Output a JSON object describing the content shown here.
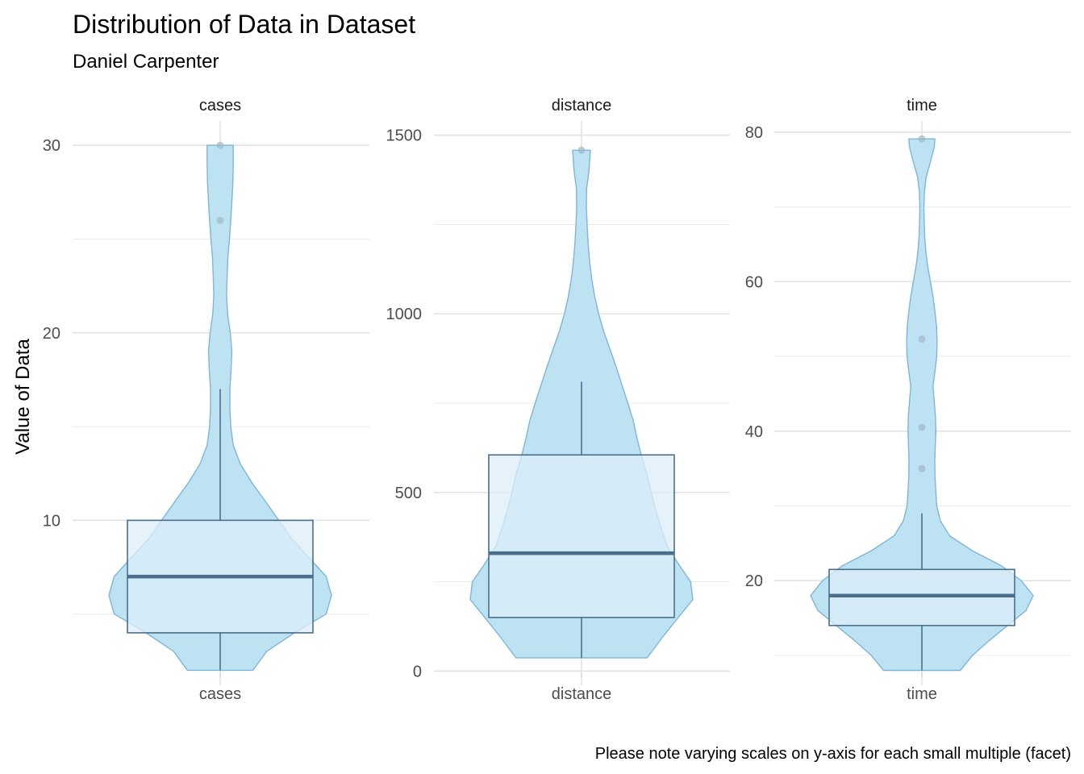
{
  "chart_data": {
    "type": "violin",
    "title": "Distribution of Data in Dataset",
    "subtitle": "Daniel Carpenter",
    "ylabel": "Value of Data",
    "caption": "Please note varying scales on y-axis for each small multiple (facet)",
    "colors": {
      "violin_fill": "#bde3f3",
      "violin_stroke": "#7fb5d8",
      "box_fill": "#ddeef8",
      "box_stroke": "#4a6f8c",
      "median": "#4a6f8c",
      "outlier": "#9fb8c8",
      "grid": "#ebebeb"
    },
    "facets": [
      {
        "name": "cases",
        "xtick": "cases",
        "ylim": [
          1.2,
          31.3
        ],
        "yticks": [
          10,
          20,
          30
        ],
        "ytick_labels": [
          "10",
          "20",
          "30"
        ],
        "minor_ticks": [
          5,
          15,
          25
        ],
        "box": {
          "q1": 4,
          "median": 7,
          "q3": 10,
          "whisker_low": 2,
          "whisker_high": 17
        },
        "outliers": [
          26,
          30
        ],
        "violin": [
          [
            2,
            3.4
          ],
          [
            3,
            2.4
          ],
          [
            4,
            1.5
          ],
          [
            5,
            1.05
          ],
          [
            6,
            1.0
          ],
          [
            7,
            1.05
          ],
          [
            8,
            1.25
          ],
          [
            9,
            1.55
          ],
          [
            10,
            1.9
          ],
          [
            11,
            2.45
          ],
          [
            12,
            3.5
          ],
          [
            13,
            5.5
          ],
          [
            14,
            8.5
          ],
          [
            15,
            10.5
          ],
          [
            16,
            11.5
          ],
          [
            17,
            11.5
          ],
          [
            18,
            10.2
          ],
          [
            19,
            9.5
          ],
          [
            20,
            11.0
          ],
          [
            21,
            15.0
          ],
          [
            22,
            17.5
          ],
          [
            23,
            16.0
          ],
          [
            24,
            14.5
          ],
          [
            25,
            12.0
          ],
          [
            26,
            10.5
          ],
          [
            27,
            9.5
          ],
          [
            28,
            8.8
          ],
          [
            29,
            8.5
          ],
          [
            30,
            8.5
          ]
        ]
      },
      {
        "name": "distance",
        "xtick": "distance",
        "ylim": [
          -40,
          1540
        ],
        "yticks": [
          0,
          500,
          1000,
          1500
        ],
        "ytick_labels": [
          "0",
          "500",
          "1000",
          "1500"
        ],
        "minor_ticks": [
          250,
          750,
          1250
        ],
        "box": {
          "q1": 150,
          "median": 330,
          "q3": 605,
          "whisker_low": 37,
          "whisker_high": 810
        },
        "outliers": [
          1458
        ],
        "violin": [
          [
            37,
            1.7
          ],
          [
            100,
            1.35
          ],
          [
            150,
            1.15
          ],
          [
            200,
            1.0
          ],
          [
            250,
            1.02
          ],
          [
            300,
            1.15
          ],
          [
            350,
            1.3
          ],
          [
            400,
            1.4
          ],
          [
            450,
            1.5
          ],
          [
            500,
            1.6
          ],
          [
            550,
            1.7
          ],
          [
            600,
            1.85
          ],
          [
            650,
            2.0
          ],
          [
            700,
            2.15
          ],
          [
            750,
            2.4
          ],
          [
            800,
            2.75
          ],
          [
            850,
            3.2
          ],
          [
            900,
            3.9
          ],
          [
            950,
            5.0
          ],
          [
            1000,
            6.5
          ],
          [
            1050,
            8.5
          ],
          [
            1100,
            11.0
          ],
          [
            1150,
            14.0
          ],
          [
            1200,
            17.0
          ],
          [
            1250,
            20.0
          ],
          [
            1300,
            23.0
          ],
          [
            1350,
            22.0
          ],
          [
            1400,
            15.0
          ],
          [
            1458,
            12.5
          ]
        ]
      },
      {
        "name": "time",
        "xtick": "time",
        "ylim": [
          6.0,
          81.5
        ],
        "yticks": [
          20,
          40,
          60,
          80
        ],
        "ytick_labels": [
          "20",
          "40",
          "60",
          "80"
        ],
        "minor_ticks": [
          10,
          30,
          50,
          70
        ],
        "box": {
          "q1": 14,
          "median": 18,
          "q3": 21.5,
          "whisker_low": 8,
          "whisker_high": 29
        },
        "outliers": [
          35,
          40.5,
          52.3,
          79.1
        ],
        "violin": [
          [
            8,
            2.9
          ],
          [
            10,
            2.2
          ],
          [
            12,
            1.65
          ],
          [
            14,
            1.3
          ],
          [
            16,
            1.07
          ],
          [
            18,
            1.0
          ],
          [
            20,
            1.12
          ],
          [
            22,
            1.4
          ],
          [
            24,
            2.2
          ],
          [
            26,
            4.0
          ],
          [
            28,
            6.0
          ],
          [
            30,
            7.5
          ],
          [
            32,
            8.0
          ],
          [
            34,
            8.5
          ],
          [
            36,
            8.6
          ],
          [
            38,
            8.3
          ],
          [
            40,
            8.0
          ],
          [
            42,
            8.2
          ],
          [
            44,
            9.0
          ],
          [
            46,
            10.0
          ],
          [
            48,
            8.5
          ],
          [
            50,
            7.5
          ],
          [
            52,
            7.3
          ],
          [
            54,
            7.6
          ],
          [
            56,
            8.5
          ],
          [
            58,
            10.0
          ],
          [
            60,
            13.0
          ],
          [
            62,
            19.0
          ],
          [
            64,
            28.0
          ],
          [
            66,
            40.0
          ],
          [
            68,
            50.0
          ],
          [
            70,
            55.0
          ],
          [
            72,
            45.0
          ],
          [
            74,
            26.0
          ],
          [
            76,
            13.0
          ],
          [
            78,
            9.0
          ],
          [
            79.1,
            8.5
          ]
        ]
      }
    ]
  }
}
